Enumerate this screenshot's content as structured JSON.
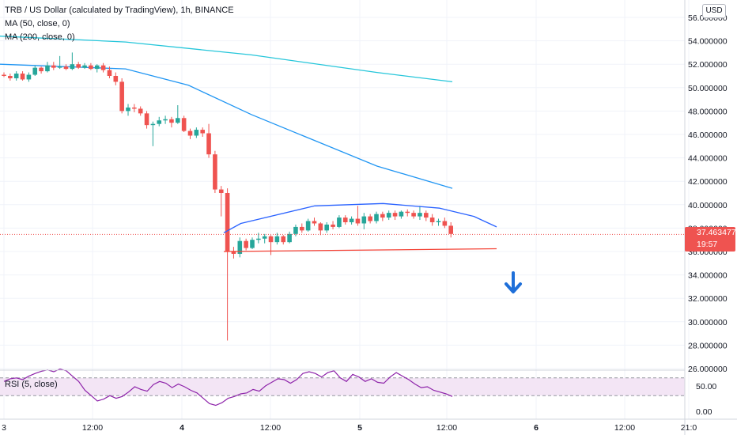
{
  "legend": {
    "title": "TRB / US Dollar (calculated by TradingView), 1h, BINANCE",
    "ma50": "MA (50, close, 0)",
    "ma200": "MA (200, close, 0)",
    "rsi": "RSI (5, close)"
  },
  "currency_button": "USD",
  "last_price": {
    "value": "37.463477",
    "countdown": "19:57"
  },
  "colors": {
    "up": "#26a69a",
    "down": "#ef5350",
    "ma50": "#2196f3",
    "ma200": "#26c6da",
    "rounding_top": "#2962ff",
    "neckline": "#f44336",
    "arrow": "#1e6fd9",
    "rsi_line": "#8e24aa",
    "rsi_band": "#f3e5f5"
  },
  "chart_data": {
    "type": "candlestick",
    "x_tick_labels": [
      "3",
      "12:00",
      "4",
      "12:00",
      "5",
      "12:00",
      "6",
      "12:00",
      "21:0"
    ],
    "y_tick_labels": [
      "56.000000",
      "54.000000",
      "52.000000",
      "50.000000",
      "48.000000",
      "46.000000",
      "44.000000",
      "42.000000",
      "40.000000",
      "38.000000",
      "36.000000",
      "34.000000",
      "32.000000",
      "30.000000",
      "28.000000",
      "26.000000"
    ],
    "ylim": [
      26,
      57
    ],
    "candles": [
      {
        "o": 51.1,
        "h": 51.3,
        "l": 50.9,
        "c": 51.0
      },
      {
        "o": 51.0,
        "h": 51.2,
        "l": 50.6,
        "c": 50.8
      },
      {
        "o": 50.8,
        "h": 51.4,
        "l": 50.6,
        "c": 51.2
      },
      {
        "o": 51.2,
        "h": 51.4,
        "l": 50.6,
        "c": 50.7
      },
      {
        "o": 50.7,
        "h": 51.3,
        "l": 50.5,
        "c": 51.1
      },
      {
        "o": 51.1,
        "h": 51.9,
        "l": 51.0,
        "c": 51.7
      },
      {
        "o": 51.7,
        "h": 51.8,
        "l": 51.2,
        "c": 51.4
      },
      {
        "o": 51.4,
        "h": 52.2,
        "l": 51.3,
        "c": 51.9
      },
      {
        "o": 51.9,
        "h": 52.2,
        "l": 51.5,
        "c": 51.7
      },
      {
        "o": 51.7,
        "h": 52.7,
        "l": 51.6,
        "c": 51.8
      },
      {
        "o": 51.8,
        "h": 52.0,
        "l": 51.5,
        "c": 51.6
      },
      {
        "o": 51.6,
        "h": 53.0,
        "l": 51.5,
        "c": 52.0
      },
      {
        "o": 52.0,
        "h": 52.2,
        "l": 51.6,
        "c": 51.7
      },
      {
        "o": 51.7,
        "h": 52.1,
        "l": 51.6,
        "c": 51.9
      },
      {
        "o": 51.9,
        "h": 52.1,
        "l": 51.5,
        "c": 51.6
      },
      {
        "o": 51.6,
        "h": 52.0,
        "l": 51.3,
        "c": 51.9
      },
      {
        "o": 51.9,
        "h": 52.1,
        "l": 51.3,
        "c": 51.5
      },
      {
        "o": 51.5,
        "h": 51.8,
        "l": 50.8,
        "c": 51.0
      },
      {
        "o": 51.0,
        "h": 51.3,
        "l": 50.2,
        "c": 50.5
      },
      {
        "o": 50.5,
        "h": 50.8,
        "l": 47.8,
        "c": 48.0
      },
      {
        "o": 48.0,
        "h": 48.6,
        "l": 47.6,
        "c": 48.3
      },
      {
        "o": 48.3,
        "h": 48.6,
        "l": 47.9,
        "c": 48.2
      },
      {
        "o": 48.2,
        "h": 48.4,
        "l": 47.6,
        "c": 47.8
      },
      {
        "o": 47.8,
        "h": 48.0,
        "l": 46.5,
        "c": 46.8
      },
      {
        "o": 46.8,
        "h": 47.1,
        "l": 45.0,
        "c": 46.9
      },
      {
        "o": 46.9,
        "h": 47.5,
        "l": 46.7,
        "c": 47.2
      },
      {
        "o": 47.2,
        "h": 47.6,
        "l": 46.9,
        "c": 47.3
      },
      {
        "o": 47.3,
        "h": 47.5,
        "l": 46.6,
        "c": 47.0
      },
      {
        "o": 47.0,
        "h": 48.5,
        "l": 46.9,
        "c": 47.4
      },
      {
        "o": 47.4,
        "h": 47.6,
        "l": 46.2,
        "c": 46.3
      },
      {
        "o": 46.3,
        "h": 46.5,
        "l": 45.6,
        "c": 45.9
      },
      {
        "o": 45.9,
        "h": 46.6,
        "l": 45.7,
        "c": 46.4
      },
      {
        "o": 46.4,
        "h": 46.6,
        "l": 45.8,
        "c": 46.1
      },
      {
        "o": 46.1,
        "h": 46.9,
        "l": 44.0,
        "c": 44.3
      },
      {
        "o": 44.3,
        "h": 44.6,
        "l": 41.0,
        "c": 41.3
      },
      {
        "o": 41.3,
        "h": 41.6,
        "l": 39.0,
        "c": 41.0
      },
      {
        "o": 41.0,
        "h": 41.4,
        "l": 28.4,
        "c": 36.0
      },
      {
        "o": 36.0,
        "h": 36.4,
        "l": 35.4,
        "c": 35.8
      },
      {
        "o": 35.8,
        "h": 37.2,
        "l": 35.5,
        "c": 36.9
      },
      {
        "o": 36.9,
        "h": 37.1,
        "l": 36.1,
        "c": 36.3
      },
      {
        "o": 36.3,
        "h": 37.2,
        "l": 36.2,
        "c": 37.0
      },
      {
        "o": 37.0,
        "h": 37.6,
        "l": 36.7,
        "c": 37.1
      },
      {
        "o": 37.1,
        "h": 37.5,
        "l": 36.7,
        "c": 37.3
      },
      {
        "o": 37.3,
        "h": 37.4,
        "l": 35.7,
        "c": 36.8
      },
      {
        "o": 36.8,
        "h": 37.6,
        "l": 36.6,
        "c": 37.3
      },
      {
        "o": 37.3,
        "h": 37.4,
        "l": 36.6,
        "c": 36.8
      },
      {
        "o": 36.8,
        "h": 37.7,
        "l": 36.7,
        "c": 37.5
      },
      {
        "o": 37.5,
        "h": 38.3,
        "l": 37.3,
        "c": 38.1
      },
      {
        "o": 38.1,
        "h": 38.4,
        "l": 37.6,
        "c": 37.8
      },
      {
        "o": 37.8,
        "h": 38.8,
        "l": 37.7,
        "c": 38.6
      },
      {
        "o": 38.6,
        "h": 38.9,
        "l": 38.2,
        "c": 38.4
      },
      {
        "o": 38.4,
        "h": 38.5,
        "l": 37.4,
        "c": 37.8
      },
      {
        "o": 37.8,
        "h": 38.5,
        "l": 37.6,
        "c": 38.3
      },
      {
        "o": 38.3,
        "h": 38.6,
        "l": 37.9,
        "c": 38.1
      },
      {
        "o": 38.1,
        "h": 39.1,
        "l": 38.0,
        "c": 38.9
      },
      {
        "o": 38.9,
        "h": 39.1,
        "l": 38.3,
        "c": 38.5
      },
      {
        "o": 38.5,
        "h": 39.0,
        "l": 38.3,
        "c": 38.8
      },
      {
        "o": 38.8,
        "h": 39.9,
        "l": 38.2,
        "c": 38.4
      },
      {
        "o": 38.4,
        "h": 39.3,
        "l": 37.9,
        "c": 39.0
      },
      {
        "o": 39.0,
        "h": 39.2,
        "l": 38.4,
        "c": 38.6
      },
      {
        "o": 38.6,
        "h": 39.4,
        "l": 38.4,
        "c": 39.2
      },
      {
        "o": 39.2,
        "h": 39.4,
        "l": 38.6,
        "c": 38.9
      },
      {
        "o": 38.9,
        "h": 39.5,
        "l": 38.7,
        "c": 39.3
      },
      {
        "o": 39.3,
        "h": 39.5,
        "l": 38.7,
        "c": 39.0
      },
      {
        "o": 39.0,
        "h": 39.5,
        "l": 38.8,
        "c": 39.4
      },
      {
        "o": 39.4,
        "h": 39.6,
        "l": 39.0,
        "c": 39.3
      },
      {
        "o": 39.3,
        "h": 39.5,
        "l": 38.8,
        "c": 39.0
      },
      {
        "o": 39.0,
        "h": 39.9,
        "l": 38.7,
        "c": 39.3
      },
      {
        "o": 39.3,
        "h": 39.5,
        "l": 38.6,
        "c": 38.9
      },
      {
        "o": 38.9,
        "h": 39.2,
        "l": 38.2,
        "c": 38.5
      },
      {
        "o": 38.5,
        "h": 38.8,
        "l": 38.2,
        "c": 38.6
      },
      {
        "o": 38.6,
        "h": 38.9,
        "l": 38.0,
        "c": 38.2
      },
      {
        "o": 38.2,
        "h": 38.5,
        "l": 37.2,
        "c": 37.5
      }
    ],
    "ma50": {
      "x_index": [
        0,
        20,
        30,
        40,
        50,
        60,
        72
      ],
      "y": [
        52.0,
        51.6,
        50.2,
        47.7,
        45.5,
        43.3,
        41.4
      ]
    },
    "ma200": {
      "x_index": [
        0,
        20,
        40,
        60,
        72
      ],
      "y": [
        54.4,
        53.9,
        52.8,
        51.3,
        50.5
      ]
    },
    "rounding_top": {
      "x_index": [
        0,
        1.5,
        8,
        14,
        19,
        22,
        24
      ],
      "y": [
        37.6,
        38.4,
        39.9,
        40.1,
        39.7,
        39.0,
        38.1
      ]
    },
    "neckline": {
      "x_index": [
        0,
        24
      ],
      "y": [
        36.1,
        36.1
      ]
    },
    "current_price": 37.463477,
    "rsi": {
      "title": "RSI (5, close)",
      "y_tick_labels": [
        "50.00",
        "0.00"
      ],
      "values": [
        62,
        68,
        70,
        66,
        74,
        80,
        85,
        88,
        84,
        90,
        86,
        74,
        62,
        42,
        30,
        18,
        22,
        30,
        24,
        28,
        38,
        50,
        44,
        40,
        55,
        62,
        58,
        48,
        56,
        50,
        42,
        36,
        24,
        12,
        8,
        14,
        24,
        28,
        34,
        36,
        44,
        40,
        52,
        60,
        68,
        66,
        58,
        66,
        80,
        84,
        80,
        72,
        82,
        86,
        70,
        62,
        78,
        72,
        62,
        68,
        60,
        58,
        72,
        82,
        74,
        66,
        56,
        48,
        50,
        42,
        38,
        34,
        28
      ]
    }
  }
}
